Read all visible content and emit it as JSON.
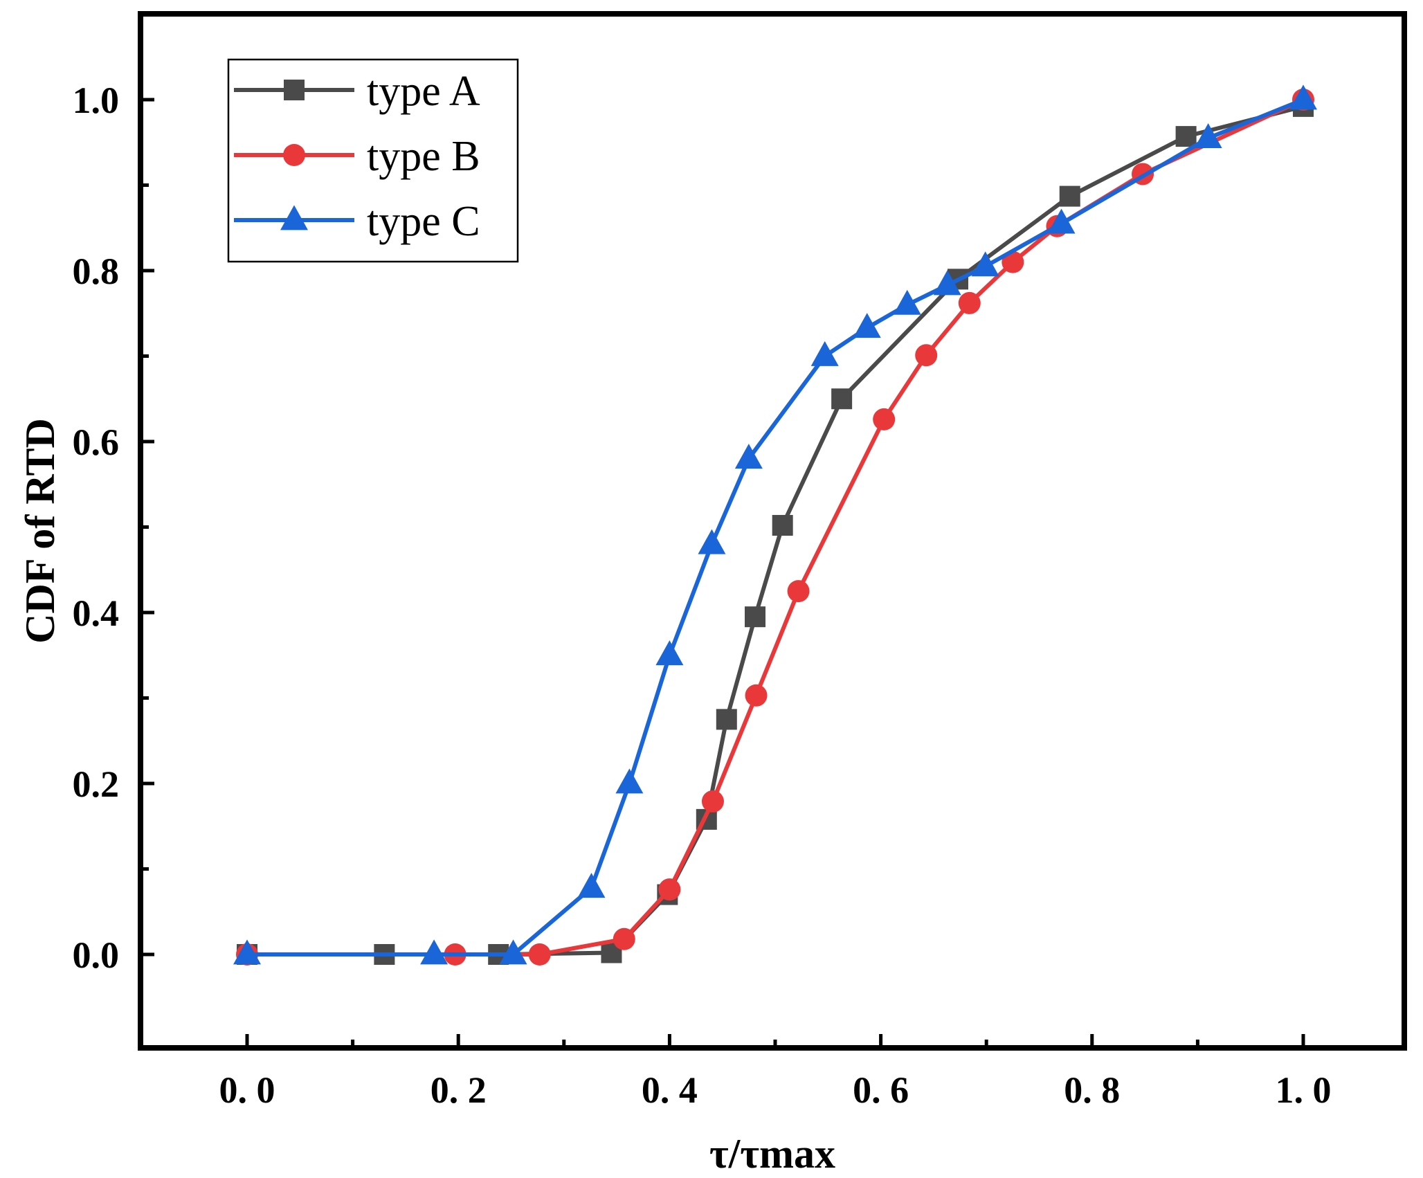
{
  "chart_data": {
    "type": "line",
    "title": "",
    "xlabel": "τ/τmax",
    "ylabel": "CDF of RTD",
    "xlim": [
      -0.1,
      1.1
    ],
    "ylim": [
      -0.1,
      1.1
    ],
    "xticks": [
      0.0,
      0.2,
      0.4,
      0.6,
      0.8,
      1.0
    ],
    "xtick_labels": [
      "0. 0",
      "0. 2",
      "0. 4",
      "0. 6",
      "0. 8",
      "1. 0"
    ],
    "yticks": [
      0.0,
      0.2,
      0.4,
      0.6,
      0.8,
      1.0
    ],
    "ytick_labels": [
      "0.0",
      "0.2",
      "0.4",
      "0.6",
      "0.8",
      "1.0"
    ],
    "grid": false,
    "legend_position": "top-left",
    "series": [
      {
        "name": "type A",
        "color": "#4a4a4a",
        "marker": "square",
        "x": [
          0.0,
          0.13,
          0.238,
          0.345,
          0.398,
          0.435,
          0.454,
          0.481,
          0.507,
          0.563,
          0.673,
          0.779,
          0.889,
          1.0
        ],
        "y": [
          0.0,
          0.0,
          0.0,
          0.002,
          0.07,
          0.158,
          0.275,
          0.395,
          0.502,
          0.65,
          0.79,
          0.887,
          0.957,
          0.992
        ]
      },
      {
        "name": "type B",
        "color": "#e8383a",
        "marker": "circle",
        "x": [
          0.0,
          0.197,
          0.277,
          0.357,
          0.4,
          0.441,
          0.482,
          0.522,
          0.603,
          0.643,
          0.684,
          0.725,
          0.767,
          0.848,
          1.0
        ],
        "y": [
          0.0,
          0.0,
          0.0,
          0.018,
          0.076,
          0.179,
          0.303,
          0.425,
          0.626,
          0.701,
          0.762,
          0.81,
          0.852,
          0.913,
          1.0
        ]
      },
      {
        "name": "type C",
        "color": "#1a66d9",
        "marker": "triangle",
        "x": [
          0.0,
          0.177,
          0.252,
          0.326,
          0.362,
          0.4,
          0.44,
          0.475,
          0.547,
          0.587,
          0.625,
          0.663,
          0.699,
          0.771,
          0.91,
          1.0
        ],
        "y": [
          0.0,
          0.0,
          0.0,
          0.078,
          0.2,
          0.35,
          0.48,
          0.58,
          0.7,
          0.733,
          0.76,
          0.783,
          0.805,
          0.855,
          0.955,
          1.0
        ]
      }
    ]
  }
}
